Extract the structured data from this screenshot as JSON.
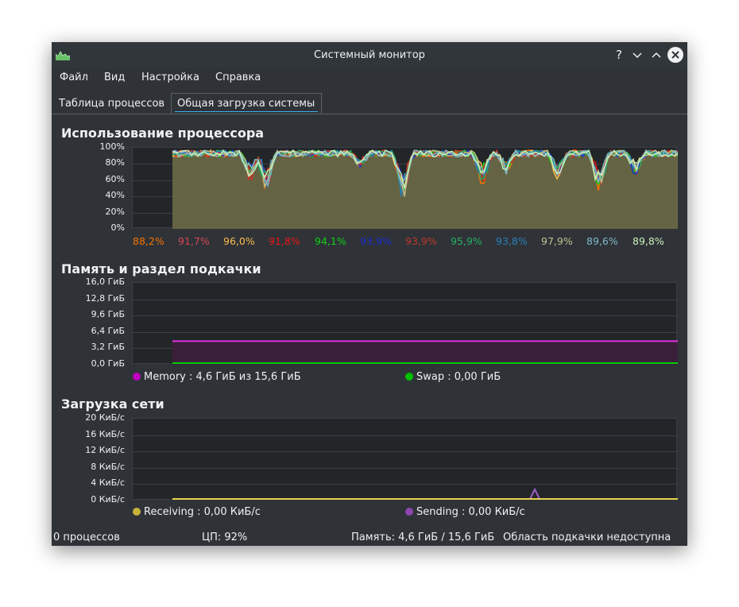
{
  "window": {
    "title": "Системный монитор",
    "buttons": {
      "help": "?",
      "minimize": "⌄",
      "maximize": "⌃",
      "close": "✕"
    }
  },
  "menu": [
    "Файл",
    "Вид",
    "Настройка",
    "Справка"
  ],
  "tabs": [
    {
      "label": "Таблица процессов",
      "active": false
    },
    {
      "label": "Общая загрузка системы",
      "active": true
    }
  ],
  "cpu": {
    "title": "Использование процессора",
    "yticks": [
      "100%",
      "80%",
      "60%",
      "40%",
      "20%",
      "0%"
    ],
    "cores": [
      {
        "value": "88,2%",
        "color": "#f67400"
      },
      {
        "value": "91,7%",
        "color": "#da4453"
      },
      {
        "value": "96,0%",
        "color": "#fdbc4b"
      },
      {
        "value": "91,8%",
        "color": "#ed1515"
      },
      {
        "value": "94,1%",
        "color": "#11d116"
      },
      {
        "value": "93,9%",
        "color": "#1d2bd0"
      },
      {
        "value": "93,9%",
        "color": "#c0392b"
      },
      {
        "value": "95,9%",
        "color": "#27ae60"
      },
      {
        "value": "93,8%",
        "color": "#2980b9"
      },
      {
        "value": "97,9%",
        "color": "#bdc38b"
      },
      {
        "value": "89,6%",
        "color": "#7fb8c7"
      },
      {
        "value": "89,8%",
        "color": "#c9f0b8"
      }
    ]
  },
  "memory": {
    "title": "Память и раздел подкачки",
    "yticks": [
      "16,0 ГиБ",
      "12,8 ГиБ",
      "9,6 ГиБ",
      "6,4 ГиБ",
      "3,2 ГиБ",
      "0,0 ГиБ"
    ],
    "legend": [
      {
        "label": "Memory : 4,6 ГиБ из 15,6 ГиБ",
        "color": "#c000c0"
      },
      {
        "label": "Swap : 0,00 ГиБ",
        "color": "#00c000"
      }
    ]
  },
  "network": {
    "title": "Загрузка сети",
    "yticks": [
      "20 КиБ/с",
      "16 КиБ/с",
      "12 КиБ/с",
      "8 КиБ/с",
      "4 КиБ/с",
      "0 КиБ/с"
    ],
    "legend": [
      {
        "label": "Receiving : 0,00 КиБ/с",
        "color": "#c8b23c"
      },
      {
        "label": "Sending : 0,00 КиБ/с",
        "color": "#8e44ad"
      }
    ]
  },
  "status": {
    "processes": "0 процессов",
    "cpu": "ЦП: 92%",
    "memory": "Память: 4,6 ГиБ / 15,6 ГиБ",
    "swap": "Область подкачки недоступна"
  }
}
